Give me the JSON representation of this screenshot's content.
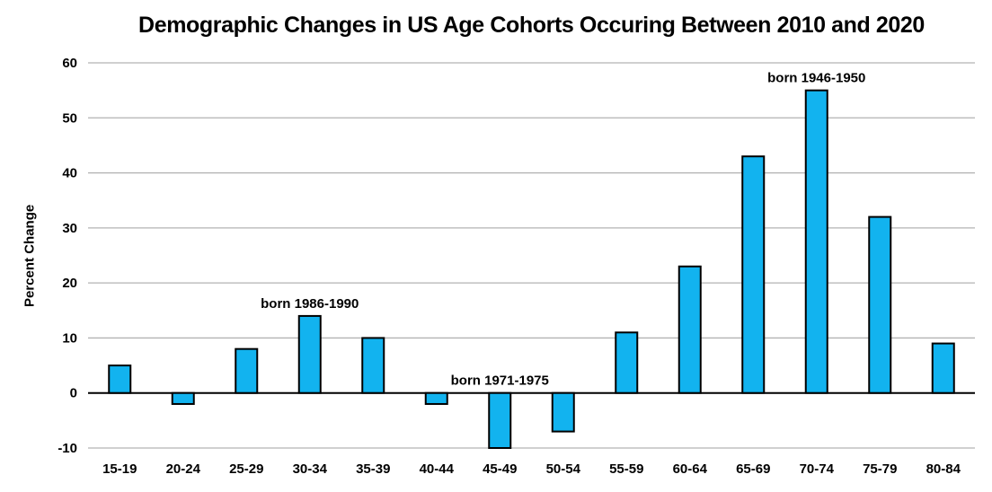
{
  "title": "Demographic Changes in US Age Cohorts Occuring Between 2010 and 2020",
  "chart_data": {
    "type": "bar",
    "title": "Demographic Changes in US Age Cohorts Occuring Between 2010 and 2020",
    "xlabel": "",
    "ylabel": "Percent Change",
    "categories": [
      "15-19",
      "20-24",
      "25-29",
      "30-34",
      "35-39",
      "40-44",
      "45-49",
      "50-54",
      "55-59",
      "60-64",
      "65-69",
      "70-74",
      "75-79",
      "80-84"
    ],
    "values": [
      5,
      -2,
      8,
      14,
      10,
      -2,
      -10,
      -7,
      11,
      23,
      43,
      55,
      32,
      9
    ],
    "ylim": [
      -10,
      60
    ],
    "ytick_interval": 10,
    "ytick_labels": [
      "60",
      "50",
      "40",
      "30",
      "20",
      "10",
      "0",
      "-10"
    ],
    "grid": true,
    "legend": false,
    "bar_color": "#12B3EF",
    "bar_border_color": "#000000",
    "grid_color": "#B3B3B3",
    "zero_line_color": "#000000",
    "text_color": "#000000",
    "annotations": [
      {
        "text": "born 1986-1990",
        "category": "30-34"
      },
      {
        "text": "born 1971-1975",
        "category": "45-49"
      },
      {
        "text": "born 1946-1950",
        "category": "70-74"
      }
    ]
  }
}
